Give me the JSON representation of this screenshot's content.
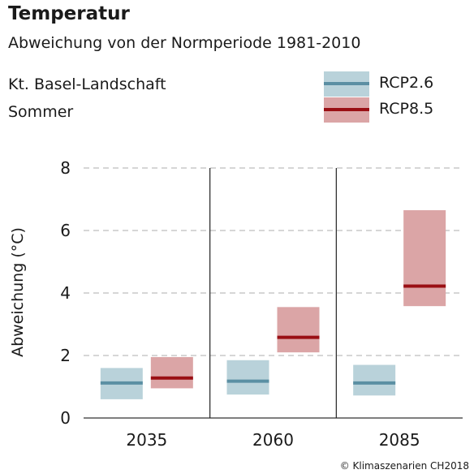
{
  "chart_data": {
    "type": "box",
    "title": "Temperatur",
    "subtitle": "Abweichung von der Normperiode 1981-2010",
    "region": "Kt. Basel-Landschaft",
    "season": "Sommer",
    "ylabel": "Abweichung (°C)",
    "xlabel": "",
    "ylim": [
      0,
      8
    ],
    "yticks": [
      0,
      2,
      4,
      6,
      8
    ],
    "grid": true,
    "legend_position": "top-right",
    "categories": [
      "2035",
      "2060",
      "2085"
    ],
    "series": [
      {
        "name": "RCP2.6",
        "box_color": "#b9d2da",
        "line_color": "#5b8fa3",
        "low": [
          0.6,
          0.75,
          0.72
        ],
        "median": [
          1.12,
          1.18,
          1.12
        ],
        "high": [
          1.6,
          1.85,
          1.7
        ]
      },
      {
        "name": "RCP8.5",
        "box_color": "#dba5a6",
        "line_color": "#9a0f14",
        "low": [
          0.95,
          2.1,
          3.58
        ],
        "median": [
          1.28,
          2.58,
          4.22
        ],
        "high": [
          1.95,
          3.55,
          6.65
        ]
      }
    ]
  },
  "credit": "© Klimaszenarien CH2018"
}
